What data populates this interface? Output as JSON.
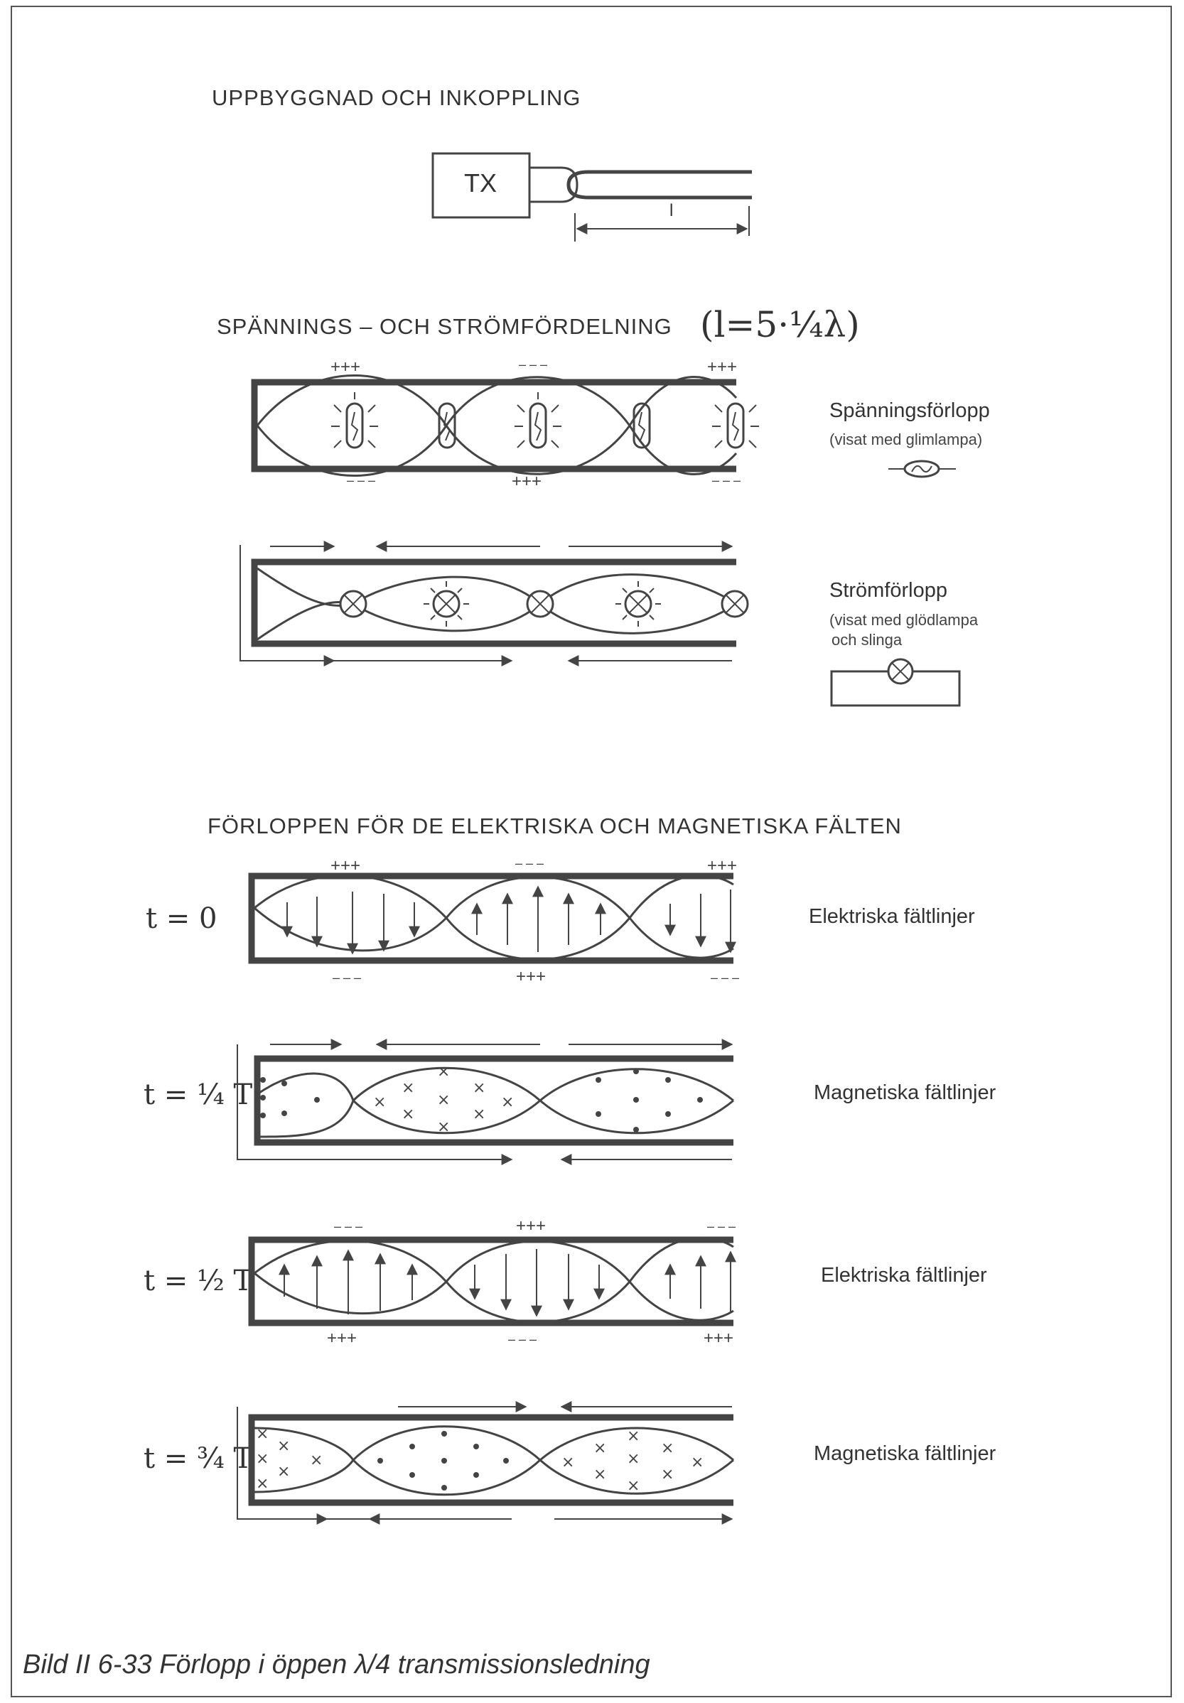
{
  "headings": {
    "section1": "UPPBYGGNAD OCH INKOPPLING",
    "section2": "SPÄNNINGS – OCH STRÖMFÖRDELNING",
    "section2_formula": "(l=5·¼λ)",
    "section3": "FÖRLOPPEN FÖR DE ELEKTRISKA OCH MAGNETISKA FÄLTEN"
  },
  "setup": {
    "tx_label": "TX",
    "length_label": "l"
  },
  "voltage": {
    "title": "Spänningsförlopp",
    "note": "(visat med glimlampa)",
    "top_signs": [
      "+++",
      "– – –",
      "+++"
    ],
    "bottom_signs": [
      "– – –",
      "+++",
      "– – –"
    ]
  },
  "current": {
    "title": "Strömförlopp",
    "note_line1": "(visat med glödlampa",
    "note_line2": "och slinga"
  },
  "fields": [
    {
      "time": "t = 0",
      "label": "Elektriska fältlinjer",
      "top_signs": [
        "+++",
        "– – –",
        "+++"
      ],
      "bottom_signs": [
        "– – –",
        "+++",
        "– – –"
      ]
    },
    {
      "time": "t = ¼ T",
      "label": "Magnetiska fältlinjer"
    },
    {
      "time": "t = ½ T",
      "label": "Elektriska fältlinjer",
      "top_signs": [
        "– – –",
        "+++",
        "– – –"
      ],
      "bottom_signs": [
        "+++",
        "– – –",
        "+++"
      ]
    },
    {
      "time": "t = ¾ T",
      "label": "Magnetiska fältlinjer"
    }
  ],
  "caption": "Bild II 6-33  Förlopp i öppen λ/4 transmissionsledning"
}
